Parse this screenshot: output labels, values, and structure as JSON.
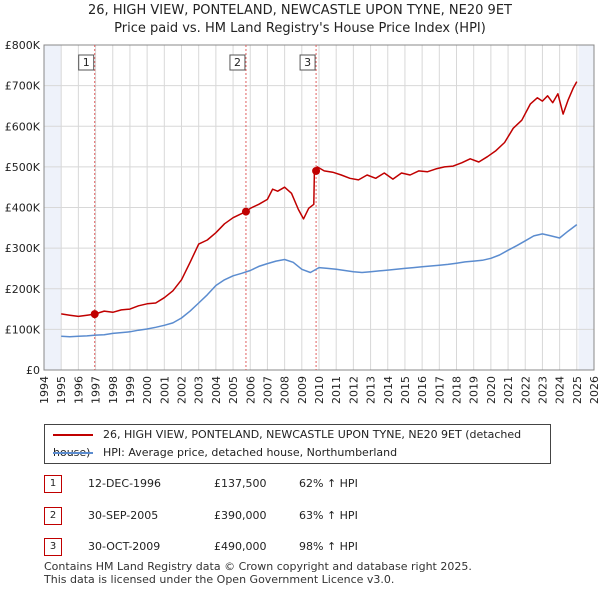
{
  "header": {
    "title": "26, HIGH VIEW, PONTELAND, NEWCASTLE UPON TYNE, NE20 9ET",
    "subtitle": "Price paid vs. HM Land Registry's House Price Index (HPI)"
  },
  "colors": {
    "property": "#c00000",
    "hpi": "#5b8ccf",
    "shade": "#eef2fa",
    "grid": "#d8d8d8",
    "marker_border": "#c00000"
  },
  "chart_data": {
    "type": "line",
    "title": "26, HIGH VIEW, PONTELAND, NEWCASTLE UPON TYNE, NE20 9ET",
    "xlim": [
      1994,
      2026
    ],
    "ylim": [
      0,
      800000
    ],
    "x_ticks": [
      "1994",
      "1995",
      "1996",
      "1997",
      "1998",
      "1999",
      "2000",
      "2001",
      "2002",
      "2003",
      "2004",
      "2005",
      "2006",
      "2007",
      "2008",
      "2009",
      "2010",
      "2011",
      "2012",
      "2013",
      "2014",
      "2015",
      "2016",
      "2017",
      "2018",
      "2019",
      "2020",
      "2021",
      "2022",
      "2023",
      "2024",
      "2025",
      "2026"
    ],
    "y_ticks": [
      {
        "value": 0,
        "label": "£0"
      },
      {
        "value": 100000,
        "label": "£100K"
      },
      {
        "value": 200000,
        "label": "£200K"
      },
      {
        "value": 300000,
        "label": "£300K"
      },
      {
        "value": 400000,
        "label": "£400K"
      },
      {
        "value": 500000,
        "label": "£500K"
      },
      {
        "value": 600000,
        "label": "£600K"
      },
      {
        "value": 700000,
        "label": "£700K"
      },
      {
        "value": 800000,
        "label": "£800K"
      }
    ],
    "shaded_ranges": [
      [
        1994,
        1995
      ],
      [
        2025.1,
        2026
      ]
    ],
    "series": [
      {
        "name": "26, HIGH VIEW, PONTELAND, NEWCASTLE UPON TYNE, NE20 9ET (detached house)",
        "color": "#c00000",
        "points": [
          [
            1995.0,
            138000
          ],
          [
            1995.5,
            135000
          ],
          [
            1996.0,
            132000
          ],
          [
            1996.5,
            135000
          ],
          [
            1996.95,
            137500
          ],
          [
            1997.5,
            145000
          ],
          [
            1998.0,
            142000
          ],
          [
            1998.5,
            148000
          ],
          [
            1999.0,
            150000
          ],
          [
            1999.5,
            158000
          ],
          [
            2000.0,
            163000
          ],
          [
            2000.5,
            165000
          ],
          [
            2001.0,
            178000
          ],
          [
            2001.5,
            195000
          ],
          [
            2002.0,
            222000
          ],
          [
            2002.5,
            265000
          ],
          [
            2003.0,
            310000
          ],
          [
            2003.5,
            320000
          ],
          [
            2004.0,
            338000
          ],
          [
            2004.5,
            360000
          ],
          [
            2005.0,
            375000
          ],
          [
            2005.5,
            385000
          ],
          [
            2005.75,
            390000
          ],
          [
            2006.0,
            398000
          ],
          [
            2006.5,
            408000
          ],
          [
            2007.0,
            420000
          ],
          [
            2007.3,
            445000
          ],
          [
            2007.6,
            440000
          ],
          [
            2008.0,
            450000
          ],
          [
            2008.4,
            435000
          ],
          [
            2008.8,
            395000
          ],
          [
            2009.1,
            372000
          ],
          [
            2009.4,
            398000
          ],
          [
            2009.7,
            408000
          ],
          [
            2009.73,
            490000
          ],
          [
            2009.9,
            500000
          ],
          [
            2010.3,
            490000
          ],
          [
            2010.8,
            487000
          ],
          [
            2011.3,
            480000
          ],
          [
            2011.8,
            472000
          ],
          [
            2012.3,
            468000
          ],
          [
            2012.8,
            480000
          ],
          [
            2013.3,
            472000
          ],
          [
            2013.8,
            485000
          ],
          [
            2014.3,
            470000
          ],
          [
            2014.8,
            485000
          ],
          [
            2015.3,
            480000
          ],
          [
            2015.8,
            490000
          ],
          [
            2016.3,
            488000
          ],
          [
            2016.8,
            495000
          ],
          [
            2017.3,
            500000
          ],
          [
            2017.8,
            502000
          ],
          [
            2018.3,
            510000
          ],
          [
            2018.8,
            520000
          ],
          [
            2019.3,
            512000
          ],
          [
            2019.8,
            525000
          ],
          [
            2020.3,
            540000
          ],
          [
            2020.8,
            560000
          ],
          [
            2021.3,
            595000
          ],
          [
            2021.8,
            615000
          ],
          [
            2022.3,
            655000
          ],
          [
            2022.7,
            670000
          ],
          [
            2023.0,
            662000
          ],
          [
            2023.3,
            675000
          ],
          [
            2023.6,
            658000
          ],
          [
            2023.9,
            680000
          ],
          [
            2024.2,
            630000
          ],
          [
            2024.5,
            665000
          ],
          [
            2024.8,
            695000
          ],
          [
            2025.0,
            710000
          ]
        ]
      },
      {
        "name": "HPI: Average price, detached house, Northumberland",
        "color": "#5b8ccf",
        "points": [
          [
            1995.0,
            83000
          ],
          [
            1995.5,
            82000
          ],
          [
            1996.0,
            83000
          ],
          [
            1996.5,
            84000
          ],
          [
            1997.0,
            86000
          ],
          [
            1997.5,
            87000
          ],
          [
            1998.0,
            90000
          ],
          [
            1998.5,
            92000
          ],
          [
            1999.0,
            94000
          ],
          [
            1999.5,
            98000
          ],
          [
            2000.0,
            101000
          ],
          [
            2000.5,
            105000
          ],
          [
            2001.0,
            110000
          ],
          [
            2001.5,
            116000
          ],
          [
            2002.0,
            128000
          ],
          [
            2002.5,
            145000
          ],
          [
            2003.0,
            165000
          ],
          [
            2003.5,
            185000
          ],
          [
            2004.0,
            208000
          ],
          [
            2004.5,
            222000
          ],
          [
            2005.0,
            232000
          ],
          [
            2005.5,
            238000
          ],
          [
            2006.0,
            245000
          ],
          [
            2006.5,
            255000
          ],
          [
            2007.0,
            262000
          ],
          [
            2007.5,
            268000
          ],
          [
            2008.0,
            272000
          ],
          [
            2008.5,
            265000
          ],
          [
            2009.0,
            248000
          ],
          [
            2009.5,
            240000
          ],
          [
            2010.0,
            252000
          ],
          [
            2010.5,
            250000
          ],
          [
            2011.0,
            248000
          ],
          [
            2011.5,
            245000
          ],
          [
            2012.0,
            242000
          ],
          [
            2012.5,
            240000
          ],
          [
            2013.0,
            242000
          ],
          [
            2013.5,
            244000
          ],
          [
            2014.0,
            246000
          ],
          [
            2014.5,
            248000
          ],
          [
            2015.0,
            250000
          ],
          [
            2015.5,
            252000
          ],
          [
            2016.0,
            254000
          ],
          [
            2016.5,
            256000
          ],
          [
            2017.0,
            258000
          ],
          [
            2017.5,
            260000
          ],
          [
            2018.0,
            263000
          ],
          [
            2018.5,
            266000
          ],
          [
            2019.0,
            268000
          ],
          [
            2019.5,
            270000
          ],
          [
            2020.0,
            275000
          ],
          [
            2020.5,
            283000
          ],
          [
            2021.0,
            295000
          ],
          [
            2021.5,
            306000
          ],
          [
            2022.0,
            318000
          ],
          [
            2022.5,
            330000
          ],
          [
            2023.0,
            335000
          ],
          [
            2023.5,
            330000
          ],
          [
            2024.0,
            325000
          ],
          [
            2024.5,
            342000
          ],
          [
            2025.0,
            358000
          ]
        ]
      }
    ],
    "markers": [
      {
        "id": "1",
        "x": 1996.95,
        "y": 137500
      },
      {
        "id": "2",
        "x": 2005.75,
        "y": 390000
      },
      {
        "id": "3",
        "x": 2009.83,
        "y": 490000
      }
    ]
  },
  "legend": {
    "property_label": "26, HIGH VIEW, PONTELAND, NEWCASTLE UPON TYNE, NE20 9ET (detached house)",
    "hpi_label": "HPI: Average price, detached house, Northumberland"
  },
  "transactions": [
    {
      "id": "1",
      "date": "12-DEC-1996",
      "price": "£137,500",
      "hpi": "62% ↑ HPI"
    },
    {
      "id": "2",
      "date": "30-SEP-2005",
      "price": "£390,000",
      "hpi": "63% ↑ HPI"
    },
    {
      "id": "3",
      "date": "30-OCT-2009",
      "price": "£490,000",
      "hpi": "98% ↑ HPI"
    }
  ],
  "footer": {
    "line1": "Contains HM Land Registry data © Crown copyright and database right 2025.",
    "line2": "This data is licensed under the Open Government Licence v3.0."
  }
}
